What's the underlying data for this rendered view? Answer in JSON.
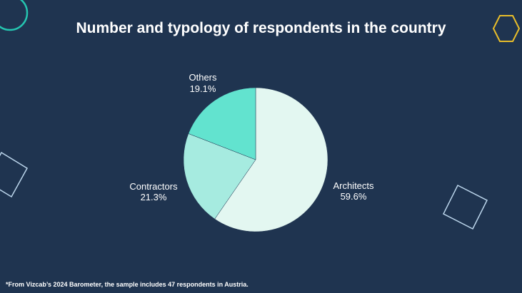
{
  "slide": {
    "title": "Number and typology of respondents in the country",
    "footnote": "*From Vizcab’s 2024 Barometer, the sample includes 47 respondents in Austria."
  },
  "colors": {
    "background": "#1f3450",
    "architects": "#e3f7f1",
    "contractors": "#a6ebe0",
    "others": "#62e3cf",
    "teal_accent": "#25c5b0",
    "yellow_accent": "#e8bd2a",
    "outline": "#bcd6ec"
  },
  "chart_data": {
    "type": "pie",
    "title": "Number and typology of respondents in the country",
    "categories": [
      "Architects",
      "Contractors",
      "Others"
    ],
    "values": [
      59.6,
      21.3,
      19.1
    ],
    "value_labels": [
      "59.6%",
      "21.3%",
      "19.1%"
    ],
    "unit": "%",
    "start_angle": "12 o'clock",
    "direction": "clockwise"
  }
}
